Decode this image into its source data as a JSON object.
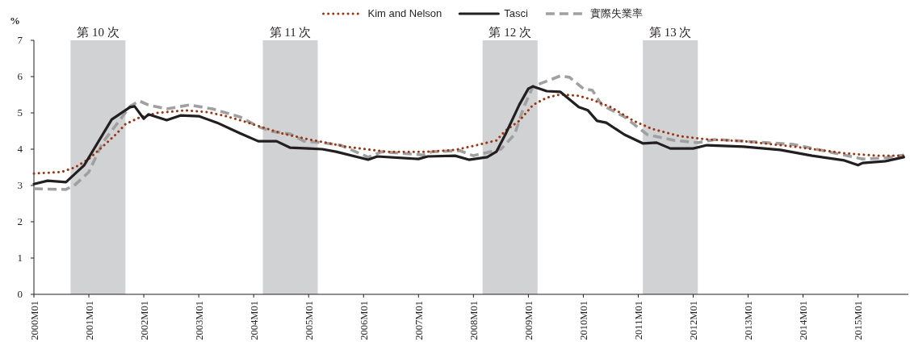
{
  "chart_data": {
    "type": "line",
    "ylabel": "%",
    "legend": "top",
    "xlim": [
      "2000-01",
      "2015-12"
    ],
    "xticks": [
      {
        "value": "2000-01",
        "label": "2000M01"
      },
      {
        "value": "2001-01",
        "label": "2001M01"
      },
      {
        "value": "2002-01",
        "label": "2002M01"
      },
      {
        "value": "2003-01",
        "label": "2003M01"
      },
      {
        "value": "2004-01",
        "label": "2004M01"
      },
      {
        "value": "2005-01",
        "label": "2005M01"
      },
      {
        "value": "2006-01",
        "label": "2006M01"
      },
      {
        "value": "2007-01",
        "label": "2007M01"
      },
      {
        "value": "2008-01",
        "label": "2008M01"
      },
      {
        "value": "2009-01",
        "label": "2009M01"
      },
      {
        "value": "2010-01",
        "label": "2010M01"
      },
      {
        "value": "2011-01",
        "label": "2011M01"
      },
      {
        "value": "2012-01",
        "label": "2012M01"
      },
      {
        "value": "2013-01",
        "label": "2013M01"
      },
      {
        "value": "2014-01",
        "label": "2014M01"
      },
      {
        "value": "2015-01",
        "label": "2015M01"
      }
    ],
    "ylim": [
      0,
      7
    ],
    "yticks": [
      0,
      1,
      2,
      3,
      4,
      5,
      6,
      7
    ],
    "bands": [
      {
        "axis": "x",
        "from": "2000-09",
        "to": "2001-09",
        "label": "第 10 次",
        "color": "#d1d2d4"
      },
      {
        "axis": "x",
        "from": "2004-03",
        "to": "2005-03",
        "label": "第 11 次",
        "color": "#d1d2d4"
      },
      {
        "axis": "x",
        "from": "2008-03",
        "to": "2009-03",
        "label": "第 12 次",
        "color": "#d1d2d4"
      },
      {
        "axis": "x",
        "from": "2011-02",
        "to": "2012-02",
        "label": "第 13 次",
        "color": "#d1d2d4"
      }
    ],
    "series": [
      {
        "name": "Kim and Nelson",
        "color": "#9c3510",
        "line_style": "dotted",
        "x": [
          "2000-01",
          "2000-07",
          "2000-10",
          "2001-01",
          "2001-04",
          "2001-07",
          "2001-09",
          "2001-12",
          "2002-04",
          "2002-10",
          "2003-03",
          "2003-07",
          "2003-11",
          "2004-03",
          "2004-07",
          "2005-01",
          "2005-04",
          "2005-09",
          "2006-06",
          "2007-03",
          "2007-09",
          "2008-01",
          "2008-06",
          "2008-08",
          "2008-11",
          "2009-02",
          "2009-05",
          "2009-08",
          "2009-12",
          "2010-03",
          "2010-07",
          "2010-12",
          "2011-04",
          "2011-10",
          "2012-04",
          "2012-12",
          "2013-11",
          "2014-10",
          "2015-05",
          "2015-11"
        ],
        "values": [
          3.33,
          3.37,
          3.5,
          3.73,
          4.07,
          4.42,
          4.69,
          4.87,
          5.0,
          5.07,
          5.02,
          4.91,
          4.76,
          4.6,
          4.44,
          4.27,
          4.2,
          4.07,
          3.93,
          3.93,
          3.98,
          4.09,
          4.24,
          4.51,
          4.78,
          5.22,
          5.42,
          5.51,
          5.47,
          5.36,
          5.16,
          4.78,
          4.56,
          4.36,
          4.27,
          4.22,
          4.07,
          3.89,
          3.82,
          3.82
        ]
      },
      {
        "name": "Tasci",
        "color": "#231f20",
        "line_style": "solid",
        "x": [
          "2000-01",
          "2000-04",
          "2000-08",
          "2000-12",
          "2001-06",
          "2001-10",
          "2001-11",
          "2002-01",
          "2002-02",
          "2002-06",
          "2002-09",
          "2003-01",
          "2003-05",
          "2003-10",
          "2004-02",
          "2004-06",
          "2004-09",
          "2005-01",
          "2005-04",
          "2005-07",
          "2006-02",
          "2006-04",
          "2007-01",
          "2007-03",
          "2007-09",
          "2007-12",
          "2008-04",
          "2008-06",
          "2008-08",
          "2008-11",
          "2009-01",
          "2009-02",
          "2009-05",
          "2009-08",
          "2009-12",
          "2010-02",
          "2010-04",
          "2010-06",
          "2010-10",
          "2011-02",
          "2011-05",
          "2011-08",
          "2012-01",
          "2012-04",
          "2012-12",
          "2013-08",
          "2014-03",
          "2014-10",
          "2015-01",
          "2015-02",
          "2015-07",
          "2015-11"
        ],
        "values": [
          3.04,
          3.13,
          3.09,
          3.56,
          4.82,
          5.16,
          5.18,
          4.84,
          4.96,
          4.8,
          4.93,
          4.91,
          4.73,
          4.44,
          4.22,
          4.22,
          4.04,
          4.02,
          4.0,
          3.93,
          3.71,
          3.8,
          3.73,
          3.8,
          3.82,
          3.71,
          3.78,
          3.93,
          4.41,
          5.22,
          5.67,
          5.73,
          5.6,
          5.58,
          5.16,
          5.07,
          4.78,
          4.73,
          4.4,
          4.16,
          4.18,
          4.02,
          4.02,
          4.11,
          4.07,
          3.98,
          3.82,
          3.69,
          3.56,
          3.62,
          3.67,
          3.78
        ]
      },
      {
        "name": "實際失業率",
        "color": "#a0a0a2",
        "line_style": "dashed",
        "x": [
          "2000-01",
          "2000-08",
          "2000-10",
          "2001-01",
          "2001-04",
          "2001-08",
          "2001-10",
          "2001-12",
          "2002-02",
          "2002-06",
          "2002-11",
          "2003-04",
          "2003-10",
          "2004-02",
          "2004-05",
          "2004-09",
          "2004-12",
          "2005-04",
          "2005-08",
          "2006-02",
          "2006-05",
          "2007-02",
          "2007-04",
          "2007-10",
          "2008-01",
          "2008-07",
          "2008-10",
          "2008-12",
          "2009-02",
          "2009-08",
          "2009-10",
          "2010-01",
          "2010-03",
          "2010-05",
          "2010-10",
          "2011-03",
          "2011-09",
          "2012-02",
          "2012-06",
          "2013-05",
          "2013-11",
          "2014-08",
          "2015-02",
          "2015-07",
          "2015-11"
        ],
        "values": [
          2.91,
          2.89,
          3.02,
          3.37,
          4.18,
          4.84,
          5.18,
          5.33,
          5.22,
          5.11,
          5.22,
          5.11,
          4.89,
          4.62,
          4.49,
          4.42,
          4.22,
          4.18,
          4.11,
          3.78,
          3.93,
          3.84,
          3.93,
          3.96,
          3.82,
          4.0,
          4.41,
          5.16,
          5.73,
          6.02,
          5.98,
          5.67,
          5.62,
          5.22,
          4.89,
          4.4,
          4.24,
          4.18,
          4.27,
          4.18,
          4.13,
          3.89,
          3.73,
          3.76,
          3.84
        ]
      }
    ]
  }
}
